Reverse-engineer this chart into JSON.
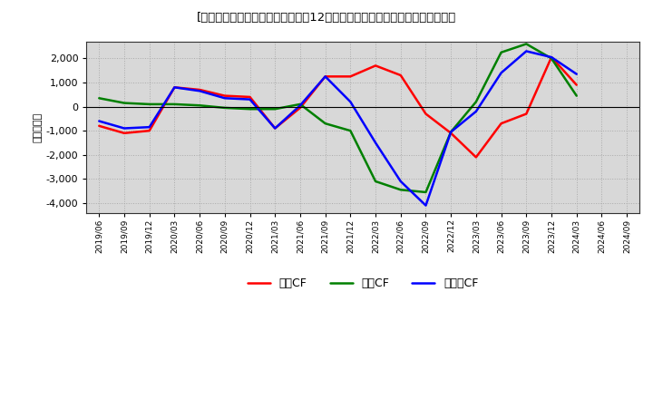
{
  "title": "[５３８１］　キャッシュフローの12か月移動合計の対前年同期増減額の推移",
  "ylabel": "（百万円）",
  "x_labels": [
    "2019/06",
    "2019/09",
    "2019/12",
    "2020/03",
    "2020/06",
    "2020/09",
    "2020/12",
    "2021/03",
    "2021/06",
    "2021/09",
    "2021/12",
    "2022/03",
    "2022/06",
    "2022/09",
    "2022/12",
    "2023/03",
    "2023/06",
    "2023/09",
    "2023/12",
    "2024/03",
    "2024/06",
    "2024/09"
  ],
  "eigyo_cf": [
    -800,
    -1100,
    -1000,
    800,
    700,
    450,
    400,
    -900,
    -50,
    1250,
    1250,
    1700,
    1300,
    -300,
    -1100,
    -2100,
    -700,
    -300,
    2050,
    900,
    null,
    null
  ],
  "toshi_cf": [
    350,
    150,
    100,
    100,
    50,
    -50,
    -100,
    -100,
    100,
    -700,
    -1000,
    -3100,
    -3450,
    -3550,
    -1050,
    200,
    2250,
    2600,
    2000,
    450,
    null,
    null
  ],
  "free_cf": [
    -600,
    -900,
    -850,
    800,
    650,
    350,
    300,
    -900,
    50,
    1250,
    200,
    -1500,
    -3100,
    -4100,
    -1050,
    -200,
    1400,
    2300,
    2050,
    1350,
    null,
    null
  ],
  "eigyo_color": "#ff0000",
  "toshi_color": "#008000",
  "free_color": "#0000ff",
  "legend_eigyo": "営業CF",
  "legend_toshi": "投資CF",
  "legend_free": "フリーCF",
  "ylim": [
    -4400,
    2700
  ],
  "yticks": [
    -4000,
    -3000,
    -2000,
    -1000,
    0,
    1000,
    2000
  ],
  "background_color": "#ffffff",
  "plot_bg_color": "#d8d8d8"
}
